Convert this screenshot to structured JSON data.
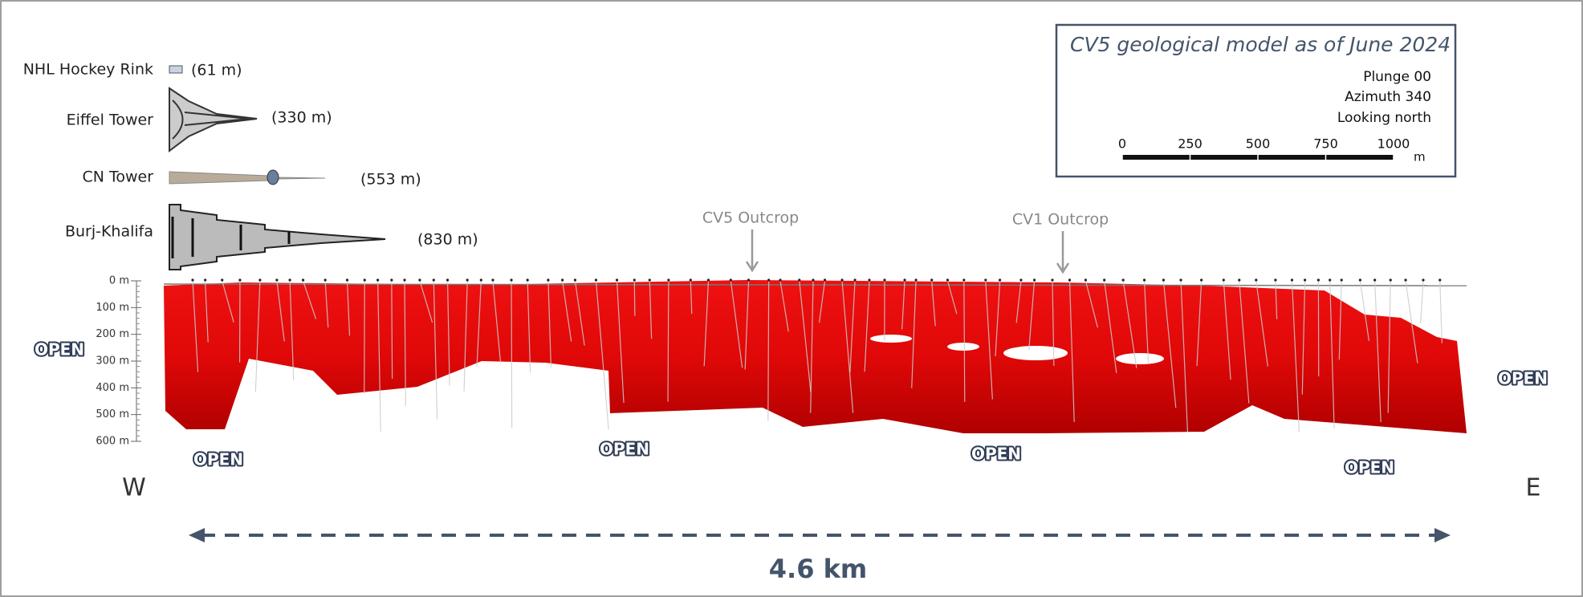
{
  "legend": {
    "title": "CV5 geological model as of June 2024",
    "lines": [
      "Plunge 00",
      "Azimuth 340",
      "Looking north"
    ],
    "scale_labels": [
      "0",
      "250",
      "500",
      "750",
      "1000"
    ],
    "scale_unit": "m"
  },
  "comparisons": [
    {
      "label": "NHL Hockey Rink",
      "height": "(61 m)"
    },
    {
      "label": "Eiffel Tower",
      "height": "(330 m)"
    },
    {
      "label": "CN Tower",
      "height": "(553 m)"
    },
    {
      "label": "Burj-Khalifa",
      "height": "(830 m)"
    }
  ],
  "depth_ticks": [
    "0 m",
    "100 m",
    "200 m",
    "300 m",
    "400 m",
    "500 m",
    "600 m"
  ],
  "outcrops": [
    "CV5 Outcrop",
    "CV1 Outcrop"
  ],
  "open_labels": [
    "OPEN",
    "OPEN",
    "OPEN",
    "OPEN",
    "OPEN",
    "OPEN"
  ],
  "directions": [
    "W",
    "E"
  ],
  "distance": "4.6 km"
}
